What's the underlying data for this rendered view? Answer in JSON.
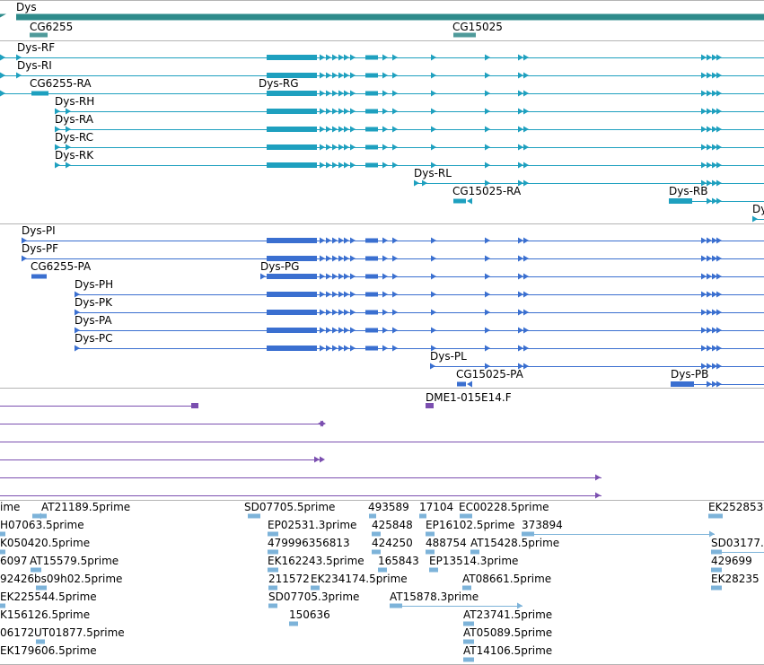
{
  "colors": {
    "gene": "#2e8b8b",
    "gene_light": "#4f9a9a",
    "transcript_rna": "#1ea0bf",
    "transcript_protein": "#3a6fd0",
    "alignment": "#7b4fb0",
    "est": "#7db3d9",
    "separator": "#b4b4b4"
  },
  "tracks": {
    "genes": {
      "labels": {
        "dys": "Dys",
        "cg6255": "CG6255",
        "cg15025": "CG15025"
      }
    },
    "transcripts": {
      "labels": {
        "rf": "Dys-RF",
        "ri": "Dys-RI",
        "cg6255_ra": "CG6255-RA",
        "rg": "Dys-RG",
        "rh": "Dys-RH",
        "ra": "Dys-RA",
        "rc": "Dys-RC",
        "rk": "Dys-RK",
        "rl": "Dys-RL",
        "cg15025_ra": "CG15025-RA",
        "rb": "Dys-RB",
        "rd_partial": "Dy"
      }
    },
    "proteins": {
      "labels": {
        "pi": "Dys-PI",
        "pf": "Dys-PF",
        "cg6255_pa": "CG6255-PA",
        "pg": "Dys-PG",
        "ph": "Dys-PH",
        "pk": "Dys-PK",
        "pa": "Dys-PA",
        "pc": "Dys-PC",
        "pl": "Dys-PL",
        "cg15025_pa": "CG15025-PA",
        "pb": "Dys-PB"
      }
    },
    "alignments": {
      "labels": {
        "dme1": "DME1-015E14.F"
      }
    },
    "ests": {
      "labels": [
        "ime",
        "AT21189.5prime",
        "SD07705.5prime",
        "493589",
        "17104",
        "EC00228.5prime",
        "EK252853",
        "H07063.5prime",
        "EP02531.3prime",
        "425848",
        "EP16102.5prime",
        "373894",
        "K050420.5prime",
        "479996356813",
        "424250",
        "488754",
        "AT15428.5prime",
        "SD03177.",
        "6097",
        "AT15579.5prime",
        "EK162243.5prime",
        "165843",
        "EP13514.3prime",
        "429699",
        "92426",
        "bs09h02.5prime",
        "211572",
        "EK234174.5prime",
        "AT08661.5prime",
        "EK28235",
        "EK225544.5prime",
        "SD07705.3prime",
        "AT15878.3prime",
        "K156126.5prime",
        "150636",
        "AT23741.5prime",
        "06172",
        "UT01877.5prime",
        "AT05089.5prime",
        "EK179606.5prime",
        "AT14106.5prime"
      ]
    }
  }
}
